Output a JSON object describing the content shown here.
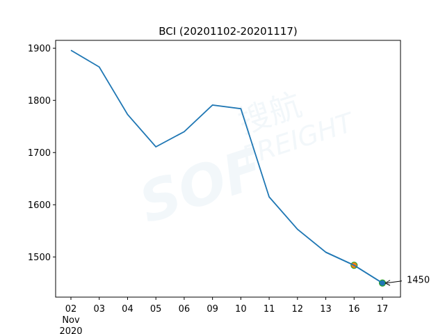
{
  "chart_data": {
    "type": "line",
    "title": "BCI (20201102-20201117)",
    "categories": [
      "02",
      "03",
      "04",
      "05",
      "06",
      "09",
      "10",
      "11",
      "12",
      "13",
      "16",
      "17"
    ],
    "x_tick_sublabels": {
      "02": [
        "Nov",
        "2020"
      ]
    },
    "series": [
      {
        "values": [
          1896,
          1864,
          1773,
          1711,
          1740,
          1791,
          1784,
          1615,
          1553,
          1509,
          1484,
          1450
        ],
        "color": "#1f77b4"
      }
    ],
    "highlight_points": [
      {
        "category": "16",
        "value": 1484,
        "fill": "#ff7f0e",
        "edge": "#2ca02c"
      },
      {
        "category": "17",
        "value": 1450,
        "fill": "#1f77b4",
        "edge": "#2ca02c"
      }
    ],
    "annotation": {
      "category": "17",
      "value": 1450,
      "text": "1450"
    },
    "ylim": [
      1423,
      1915
    ],
    "yticks": [
      1500,
      1600,
      1700,
      1800,
      1900
    ],
    "grid": false,
    "watermark": "SOFI 搜航 FREIGHT"
  }
}
